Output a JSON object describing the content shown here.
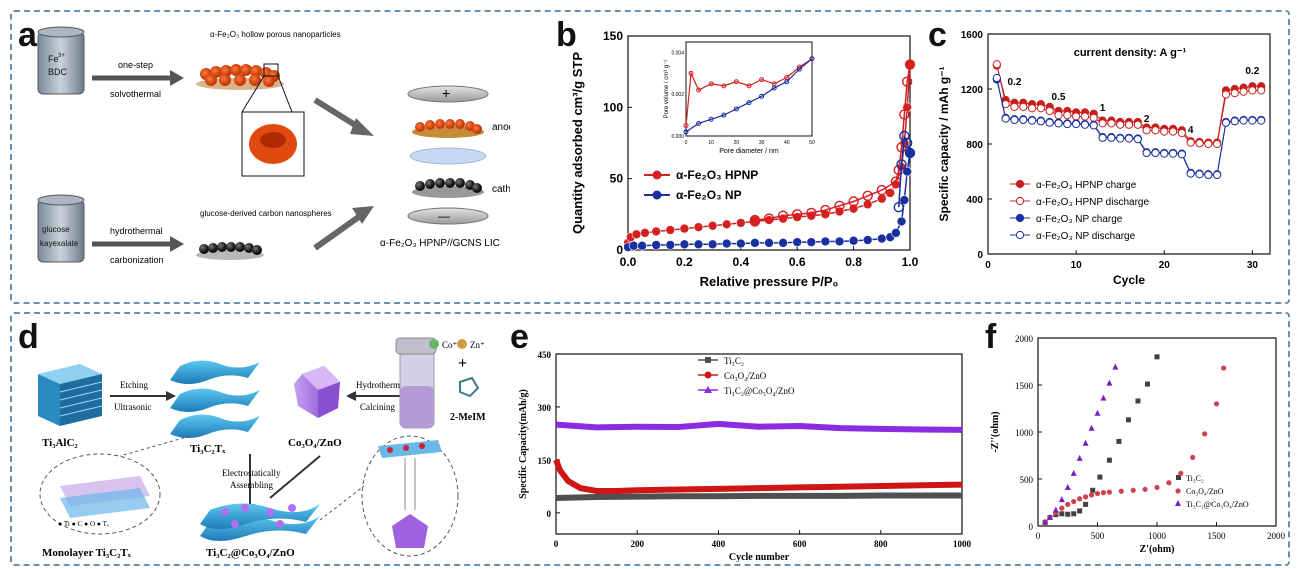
{
  "panels": {
    "a": "a",
    "b": "b",
    "c": "c",
    "d": "d",
    "e": "e",
    "f": "f"
  },
  "schematic_a": {
    "jar_top_label": "Fe",
    "jar_top_sup": "3+",
    "jar_top_label2": "BDC",
    "arrow1_top": "one-step",
    "arrow1_bottom": "solvothermal",
    "product_top": "α-Fe₂O₃ hollow porous nanoparticles",
    "jar_bottom_label": "glucose",
    "jar_bottom_label2": "kayexalate",
    "arrow2_top": "hydrothermal",
    "arrow2_bottom": "carbonization",
    "product_bottom": "glucose-derived carbon nanospheres",
    "anode": "anode",
    "cathode": "cathode",
    "device": "α-Fe₂O₃ HPNP//GCNS LIC",
    "plus": "+",
    "minus": "—"
  },
  "schematic_d": {
    "ti3alc2": "Ti₃AlC₂",
    "etching": "Etching",
    "ultrasonic": "Ultrasonic",
    "ti3c2tx": "Ti₃C₂Tₓ",
    "co3o4zno": "Co₃O₄/ZnO",
    "hydrothermal": "Hydrothermal",
    "calcining": "Calcining",
    "co": "Co⁺",
    "zn": "Zn⁺",
    "plus": "+",
    "mim": "2-MeIM",
    "electro1": "Electrostatically",
    "electro2": "Assembling",
    "monolayer": "Monolayer Ti₃C₂Tₓ",
    "composite": "Ti₃C₂@Co₃O₄/ZnO",
    "legend_atoms": "● Ti  ● C  ● O  ● Tₓ"
  },
  "chart_data": [
    {
      "type": "line",
      "panel": "b",
      "xlabel": "Relative pressure P/P₀",
      "ylabel": "Quantity adsorbed cm³/g STP",
      "xlim": [
        0,
        1.0
      ],
      "ylim": [
        0,
        150
      ],
      "xticks": [
        "0.0",
        "0.2",
        "0.4",
        "0.6",
        "0.8",
        "1.0"
      ],
      "yticks": [
        "0",
        "50",
        "100",
        "150"
      ],
      "series": [
        {
          "name": "α-Fe₂O₃ HPNP",
          "color": "#d42020",
          "x": [
            0.0,
            0.01,
            0.03,
            0.06,
            0.1,
            0.15,
            0.2,
            0.25,
            0.3,
            0.35,
            0.4,
            0.45,
            0.5,
            0.55,
            0.6,
            0.65,
            0.7,
            0.75,
            0.8,
            0.85,
            0.9,
            0.93,
            0.95,
            0.97,
            0.98,
            0.99,
            1.0
          ],
          "y": [
            5,
            9,
            11,
            12,
            13,
            14,
            15,
            16,
            17,
            18,
            19,
            20,
            21,
            22,
            23,
            24,
            25,
            27,
            29,
            32,
            36,
            40,
            46,
            58,
            75,
            100,
            130
          ],
          "desorb_x": [
            1.0,
            0.99,
            0.98,
            0.97,
            0.96,
            0.95,
            0.9,
            0.85,
            0.8,
            0.75,
            0.7,
            0.65,
            0.6,
            0.55,
            0.5,
            0.45,
            0.45
          ],
          "desorb_y": [
            130,
            118,
            95,
            72,
            56,
            48,
            42,
            38,
            34,
            31,
            28,
            26,
            25,
            24,
            22,
            21,
            20
          ]
        },
        {
          "name": "α-Fe₂O₃ NP",
          "color": "#1a2fa0",
          "x": [
            0.0,
            0.02,
            0.05,
            0.1,
            0.15,
            0.2,
            0.25,
            0.3,
            0.35,
            0.4,
            0.45,
            0.5,
            0.55,
            0.6,
            0.65,
            0.7,
            0.75,
            0.8,
            0.85,
            0.9,
            0.93,
            0.95,
            0.97,
            0.98,
            0.99,
            1.0
          ],
          "y": [
            2,
            3,
            3,
            3.5,
            3.5,
            4,
            4,
            4,
            4.5,
            4.5,
            5,
            5,
            5,
            5.5,
            5.5,
            6,
            6,
            6.5,
            7,
            8,
            9,
            12,
            20,
            35,
            55,
            68
          ],
          "desorb_x": [
            1.0,
            0.99,
            0.98,
            0.97,
            0.96
          ],
          "desorb_y": [
            68,
            75,
            80,
            60,
            30
          ]
        }
      ],
      "inset": {
        "xlabel": "Pore diameter / nm",
        "ylabel": "Pore volume / cm³ g⁻¹",
        "xticks": [
          "0",
          "10",
          "20",
          "30",
          "40",
          "50"
        ],
        "yticks": [
          "0.000",
          "0.002",
          "0.004"
        ]
      }
    },
    {
      "type": "scatter",
      "panel": "c",
      "title": "current density: A g⁻¹",
      "xlabel": "Cycle",
      "ylabel": "Specific capacity / mAh g⁻¹",
      "xlim": [
        0,
        32
      ],
      "ylim": [
        0,
        1600
      ],
      "xticks": [
        "0",
        "10",
        "20",
        "30"
      ],
      "yticks": [
        "0",
        "400",
        "800",
        "1200",
        "1600"
      ],
      "rate_labels": [
        {
          "text": "0.2",
          "x": 3,
          "y": 1230
        },
        {
          "text": "0.5",
          "x": 8,
          "y": 1120
        },
        {
          "text": "1",
          "x": 13,
          "y": 1040
        },
        {
          "text": "2",
          "x": 18,
          "y": 960
        },
        {
          "text": "4",
          "x": 23,
          "y": 880
        },
        {
          "text": "0.2",
          "x": 30,
          "y": 1310
        }
      ],
      "series": [
        {
          "name": "α-Fe₂O₃ HPNP charge",
          "color": "#c81e1e",
          "values": [
            1370,
            1120,
            1100,
            1100,
            1090,
            1090,
            1070,
            1040,
            1040,
            1030,
            1030,
            1020,
            970,
            970,
            960,
            960,
            960,
            920,
            920,
            910,
            910,
            900,
            820,
            815,
            810,
            810,
            1190,
            1200,
            1210,
            1220,
            1220
          ]
        },
        {
          "name": "α-Fe₂O₃ HPNP discharge",
          "color": "#c81e1e",
          "values": [
            1380,
            1090,
            1070,
            1070,
            1060,
            1060,
            1040,
            1010,
            1010,
            1000,
            1000,
            990,
            950,
            950,
            940,
            940,
            940,
            900,
            900,
            890,
            890,
            880,
            810,
            805,
            800,
            800,
            1160,
            1170,
            1180,
            1190,
            1190
          ]
        },
        {
          "name": "α-Fe₂O₃ NP charge",
          "color": "#1a2fa0",
          "values": [
            1270,
            990,
            980,
            980,
            975,
            970,
            960,
            955,
            950,
            950,
            945,
            940,
            850,
            850,
            845,
            845,
            840,
            740,
            740,
            735,
            735,
            730,
            590,
            585,
            580,
            580,
            960,
            970,
            975,
            975,
            975
          ]
        },
        {
          "name": "α-Fe₂O₃ NP discharge",
          "color": "#1a2fa0",
          "values": [
            1280,
            985,
            975,
            975,
            970,
            965,
            955,
            950,
            945,
            945,
            940,
            935,
            845,
            845,
            840,
            840,
            835,
            735,
            735,
            730,
            730,
            725,
            585,
            580,
            575,
            575,
            955,
            965,
            970,
            970,
            970
          ]
        }
      ]
    },
    {
      "type": "line",
      "panel": "e",
      "xlabel": "Cycle number",
      "ylabel": "Specific Capacity(mAh/g)",
      "xlim": [
        0,
        1000
      ],
      "ylim": [
        -60,
        450
      ],
      "xticks": [
        "0",
        "200",
        "400",
        "600",
        "800",
        "1000"
      ],
      "yticks": [
        "0",
        "150",
        "300",
        "450"
      ],
      "series": [
        {
          "name": "Ti₃C₂",
          "color": "#505050",
          "x": [
            0,
            100,
            200,
            300,
            400,
            500,
            600,
            700,
            800,
            900,
            1000
          ],
          "y": [
            42,
            45,
            46,
            47,
            47,
            48,
            48,
            48,
            49,
            49,
            49
          ]
        },
        {
          "name": "Co₃O₄/ZnO",
          "color": "#d01515",
          "x": [
            0,
            10,
            30,
            60,
            100,
            150,
            200,
            300,
            400,
            500,
            600,
            700,
            800,
            900,
            1000
          ],
          "y": [
            150,
            120,
            90,
            70,
            62,
            62,
            64,
            66,
            68,
            70,
            72,
            74,
            76,
            78,
            80
          ]
        },
        {
          "name": "Ti₃C₂@Co₃O₄/ZnO",
          "color": "#8b2be2",
          "x": [
            0,
            100,
            200,
            300,
            400,
            500,
            600,
            700,
            800,
            900,
            1000
          ],
          "y": [
            250,
            242,
            244,
            243,
            252,
            244,
            246,
            240,
            238,
            236,
            235
          ]
        }
      ]
    },
    {
      "type": "scatter",
      "panel": "f",
      "xlabel": "Z'(ohm)",
      "ylabel": "-Z''(ohm)",
      "xlim": [
        0,
        2000
      ],
      "ylim": [
        0,
        2000
      ],
      "xticks": [
        "0",
        "500",
        "1000",
        "1500",
        "2000"
      ],
      "yticks": [
        "0",
        "500",
        "1000",
        "1500",
        "2000"
      ],
      "series": [
        {
          "name": "Ti₃C₂",
          "color": "#404040",
          "marker": "square",
          "x": [
            60,
            100,
            150,
            200,
            250,
            300,
            350,
            400,
            460,
            520,
            600,
            680,
            760,
            840,
            920,
            1000
          ],
          "y": [
            40,
            90,
            120,
            130,
            125,
            130,
            160,
            230,
            380,
            520,
            700,
            900,
            1130,
            1330,
            1510,
            1800
          ]
        },
        {
          "name": "Co₃O₄/ZnO",
          "color": "#d04050",
          "marker": "circle",
          "x": [
            60,
            100,
            150,
            200,
            250,
            300,
            350,
            400,
            450,
            500,
            550,
            600,
            700,
            800,
            900,
            1000,
            1100,
            1200,
            1300,
            1400,
            1500,
            1560
          ],
          "y": [
            40,
            90,
            140,
            190,
            230,
            260,
            290,
            310,
            330,
            345,
            355,
            360,
            370,
            380,
            390,
            410,
            460,
            560,
            730,
            980,
            1300,
            1680
          ]
        },
        {
          "name": "Ti₃C₂@Co₃O₄/ZnO",
          "color": "#7b1fc0",
          "marker": "triangle",
          "x": [
            60,
            100,
            150,
            200,
            250,
            300,
            350,
            400,
            450,
            500,
            550,
            600,
            650
          ],
          "y": [
            40,
            90,
            170,
            280,
            410,
            560,
            720,
            880,
            1040,
            1200,
            1360,
            1520,
            1690
          ]
        }
      ]
    }
  ]
}
